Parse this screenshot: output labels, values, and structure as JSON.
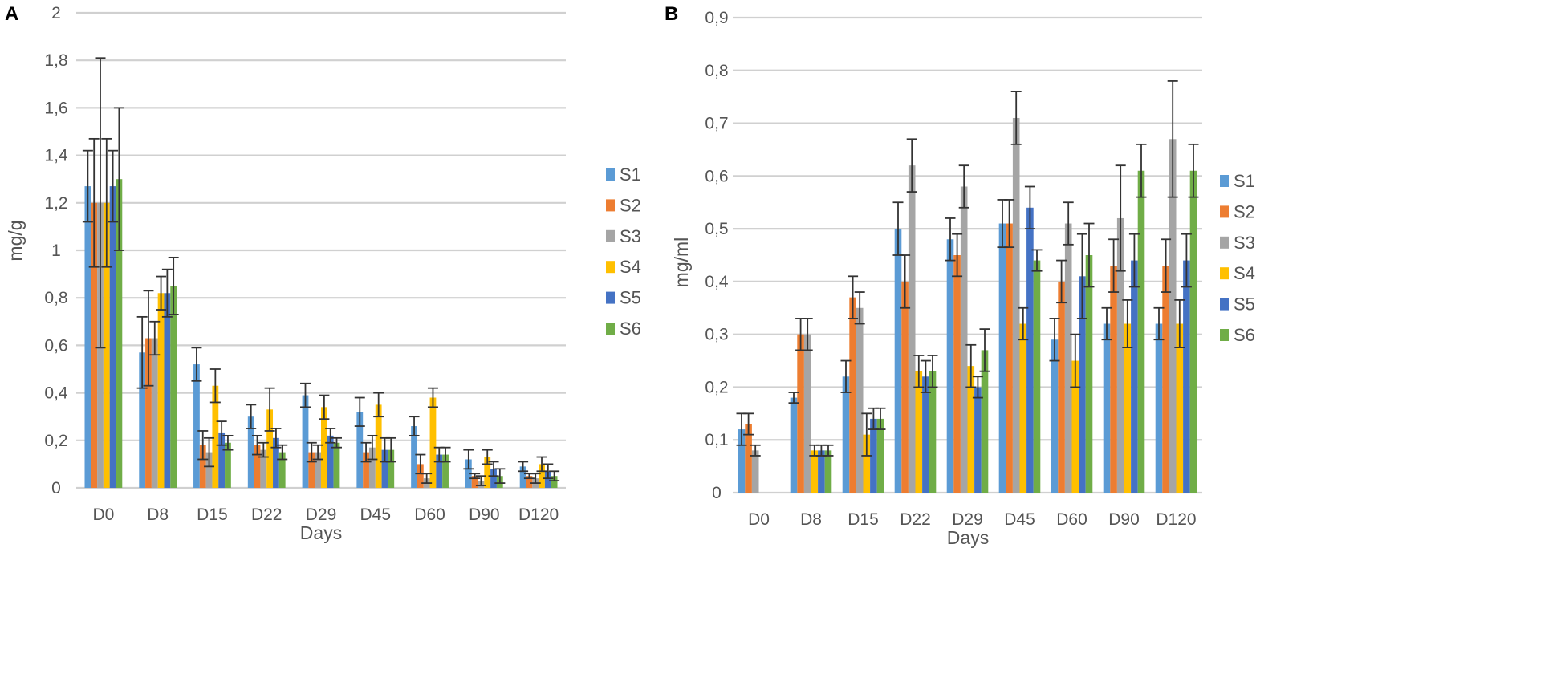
{
  "chart_data": [
    {
      "panel_label": "A",
      "type": "bar",
      "xlabel": "Days",
      "ylabel": "mg/g",
      "ylim": [
        0,
        2
      ],
      "ytick_values": [
        0,
        0.2,
        0.4,
        0.6,
        0.8,
        1,
        1.2,
        1.4,
        1.6,
        1.8,
        2
      ],
      "ytick_labels": [
        "0",
        "0,2",
        "0,4",
        "0,6",
        "0,8",
        "1",
        "1,2",
        "1,4",
        "1,6",
        "1,8",
        "2"
      ],
      "grid": true,
      "legend": "right",
      "categories": [
        "D0",
        "D8",
        "D15",
        "D22",
        "D29",
        "D45",
        "D60",
        "D90",
        "D120"
      ],
      "series": [
        {
          "name": "S1",
          "color": "#5b9bd5",
          "values": [
            1.27,
            0.57,
            0.52,
            0.3,
            0.39,
            0.32,
            0.26,
            0.12,
            0.09
          ],
          "errors": [
            0.15,
            0.15,
            0.07,
            0.05,
            0.05,
            0.06,
            0.04,
            0.04,
            0.02
          ]
        },
        {
          "name": "S2",
          "color": "#ed7d31",
          "values": [
            1.2,
            0.63,
            0.18,
            0.18,
            0.15,
            0.15,
            0.1,
            0.05,
            0.05
          ],
          "errors": [
            0.27,
            0.2,
            0.06,
            0.04,
            0.04,
            0.04,
            0.04,
            0.01,
            0.01
          ]
        },
        {
          "name": "S3",
          "color": "#a5a5a5",
          "values": [
            1.2,
            0.63,
            0.15,
            0.16,
            0.15,
            0.17,
            0.04,
            0.03,
            0.04
          ],
          "errors": [
            0.61,
            0.07,
            0.06,
            0.03,
            0.03,
            0.05,
            0.02,
            0.02,
            0.02
          ]
        },
        {
          "name": "S4",
          "color": "#ffc000",
          "values": [
            1.2,
            0.82,
            0.43,
            0.33,
            0.34,
            0.35,
            0.38,
            0.13,
            0.1
          ],
          "errors": [
            0.27,
            0.07,
            0.07,
            0.09,
            0.05,
            0.05,
            0.04,
            0.03,
            0.03
          ]
        },
        {
          "name": "S5",
          "color": "#4472c4",
          "values": [
            1.27,
            0.82,
            0.23,
            0.21,
            0.22,
            0.16,
            0.14,
            0.08,
            0.07
          ],
          "errors": [
            0.15,
            0.1,
            0.05,
            0.04,
            0.03,
            0.05,
            0.03,
            0.03,
            0.03
          ]
        },
        {
          "name": "S6",
          "color": "#70ad47",
          "values": [
            1.3,
            0.85,
            0.19,
            0.15,
            0.19,
            0.16,
            0.14,
            0.05,
            0.05
          ],
          "errors": [
            0.3,
            0.12,
            0.03,
            0.03,
            0.02,
            0.05,
            0.03,
            0.03,
            0.02
          ]
        }
      ]
    },
    {
      "panel_label": "B",
      "type": "bar",
      "xlabel": "Days",
      "ylabel": "mg/ml",
      "ylim": [
        0,
        0.9
      ],
      "ytick_values": [
        0,
        0.1,
        0.2,
        0.3,
        0.4,
        0.5,
        0.6,
        0.7,
        0.8,
        0.9
      ],
      "ytick_labels": [
        "0",
        "0,1",
        "0,2",
        "0,3",
        "0,4",
        "0,5",
        "0,6",
        "0,7",
        "0,8",
        "0,9"
      ],
      "grid": true,
      "legend": "right",
      "categories": [
        "D0",
        "D8",
        "D15",
        "D22",
        "D29",
        "D45",
        "D60",
        "D90",
        "D120"
      ],
      "series": [
        {
          "name": "S1",
          "color": "#5b9bd5",
          "values": [
            0.12,
            0.18,
            0.22,
            0.5,
            0.48,
            0.51,
            0.29,
            0.32,
            0.32
          ],
          "errors": [
            0.03,
            0.01,
            0.03,
            0.05,
            0.04,
            0.045,
            0.04,
            0.03,
            0.03
          ]
        },
        {
          "name": "S2",
          "color": "#ed7d31",
          "values": [
            0.13,
            0.3,
            0.37,
            0.4,
            0.45,
            0.51,
            0.4,
            0.43,
            0.43
          ],
          "errors": [
            0.02,
            0.03,
            0.04,
            0.05,
            0.04,
            0.045,
            0.04,
            0.05,
            0.05
          ]
        },
        {
          "name": "S3",
          "color": "#a5a5a5",
          "values": [
            0.08,
            0.3,
            0.35,
            0.62,
            0.58,
            0.71,
            0.51,
            0.52,
            0.67
          ],
          "errors": [
            0.01,
            0.03,
            0.03,
            0.05,
            0.04,
            0.05,
            0.04,
            0.1,
            0.11
          ]
        },
        {
          "name": "S4",
          "color": "#ffc000",
          "values": [
            0,
            0.08,
            0.11,
            0.23,
            0.24,
            0.32,
            0.25,
            0.32,
            0.32
          ],
          "errors": [
            0,
            0.01,
            0.04,
            0.03,
            0.04,
            0.03,
            0.05,
            0.045,
            0.045
          ]
        },
        {
          "name": "S5",
          "color": "#4472c4",
          "values": [
            0,
            0.08,
            0.14,
            0.22,
            0.2,
            0.54,
            0.41,
            0.44,
            0.44
          ],
          "errors": [
            0,
            0.01,
            0.02,
            0.03,
            0.02,
            0.04,
            0.08,
            0.05,
            0.05
          ]
        },
        {
          "name": "S6",
          "color": "#70ad47",
          "values": [
            0,
            0.08,
            0.14,
            0.23,
            0.27,
            0.44,
            0.45,
            0.61,
            0.61
          ],
          "errors": [
            0,
            0.01,
            0.02,
            0.03,
            0.04,
            0.02,
            0.06,
            0.05,
            0.05
          ]
        }
      ]
    }
  ]
}
